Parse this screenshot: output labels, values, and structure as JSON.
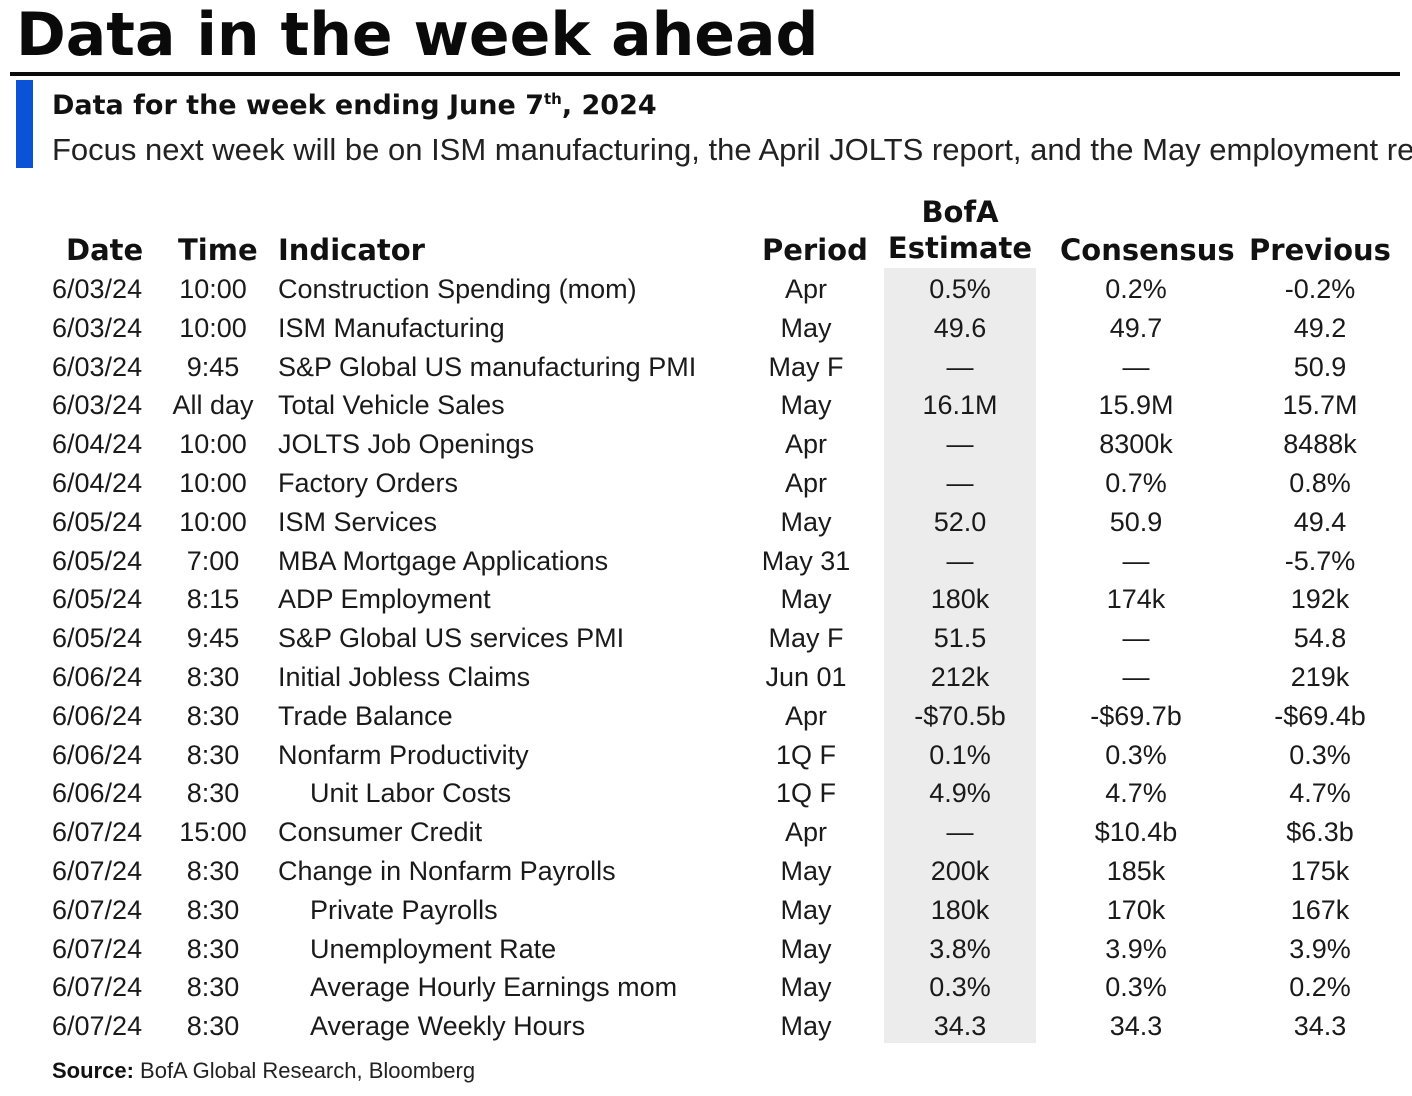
{
  "title": "Data in the week ahead",
  "subtitle": {
    "prefix": "Data for the week ending June 7",
    "superscript": "th",
    "suffix": ", 2024"
  },
  "focus": "Focus next week will be on ISM manufacturing, the April JOLTS report, and the May employment report",
  "colors": {
    "accent": "#0a53d6",
    "estimate_shade": "#ececec",
    "rule": "#0b0b0b"
  },
  "table": {
    "headers": {
      "date": "Date",
      "time": "Time",
      "indicator": "Indicator",
      "period": "Period",
      "bofa_line1": "BofA",
      "bofa_line2": "Estimate",
      "consensus": "Consensus",
      "previous": "Previous"
    },
    "rows": [
      {
        "date": "6/03/24",
        "time": "10:00",
        "indicator": "Construction Spending (mom)",
        "indent": false,
        "period": "Apr",
        "estimate": "0.5%",
        "consensus": "0.2%",
        "previous": "-0.2%"
      },
      {
        "date": "6/03/24",
        "time": "10:00",
        "indicator": "ISM Manufacturing",
        "indent": false,
        "period": "May",
        "estimate": "49.6",
        "consensus": "49.7",
        "previous": "49.2"
      },
      {
        "date": "6/03/24",
        "time": "9:45",
        "indicator": "S&P Global US manufacturing PMI",
        "indent": false,
        "period": "May F",
        "estimate": "—",
        "consensus": "—",
        "previous": "50.9"
      },
      {
        "date": "6/03/24",
        "time": "All day",
        "indicator": "Total Vehicle Sales",
        "indent": false,
        "period": "May",
        "estimate": "16.1M",
        "consensus": "15.9M",
        "previous": "15.7M"
      },
      {
        "date": "6/04/24",
        "time": "10:00",
        "indicator": "JOLTS Job Openings",
        "indent": false,
        "period": "Apr",
        "estimate": "—",
        "consensus": "8300k",
        "previous": "8488k"
      },
      {
        "date": "6/04/24",
        "time": "10:00",
        "indicator": "Factory Orders",
        "indent": false,
        "period": "Apr",
        "estimate": "—",
        "consensus": "0.7%",
        "previous": "0.8%"
      },
      {
        "date": "6/05/24",
        "time": "10:00",
        "indicator": "ISM Services",
        "indent": false,
        "period": "May",
        "estimate": "52.0",
        "consensus": "50.9",
        "previous": "49.4"
      },
      {
        "date": "6/05/24",
        "time": "7:00",
        "indicator": "MBA Mortgage Applications",
        "indent": false,
        "period": "May 31",
        "estimate": "—",
        "consensus": "—",
        "previous": "-5.7%"
      },
      {
        "date": "6/05/24",
        "time": "8:15",
        "indicator": "ADP Employment",
        "indent": false,
        "period": "May",
        "estimate": "180k",
        "consensus": "174k",
        "previous": "192k"
      },
      {
        "date": "6/05/24",
        "time": "9:45",
        "indicator": "S&P Global US services PMI",
        "indent": false,
        "period": "May F",
        "estimate": "51.5",
        "consensus": "—",
        "previous": "54.8"
      },
      {
        "date": "6/06/24",
        "time": "8:30",
        "indicator": "Initial Jobless Claims",
        "indent": false,
        "period": "Jun 01",
        "estimate": "212k",
        "consensus": "—",
        "previous": "219k"
      },
      {
        "date": "6/06/24",
        "time": "8:30",
        "indicator": "Trade Balance",
        "indent": false,
        "period": "Apr",
        "estimate": "-$70.5b",
        "consensus": "-$69.7b",
        "previous": "-$69.4b"
      },
      {
        "date": "6/06/24",
        "time": "8:30",
        "indicator": "Nonfarm Productivity",
        "indent": false,
        "period": "1Q F",
        "estimate": "0.1%",
        "consensus": "0.3%",
        "previous": "0.3%"
      },
      {
        "date": "6/06/24",
        "time": "8:30",
        "indicator": "Unit Labor Costs",
        "indent": true,
        "period": "1Q F",
        "estimate": "4.9%",
        "consensus": "4.7%",
        "previous": "4.7%"
      },
      {
        "date": "6/07/24",
        "time": "15:00",
        "indicator": "Consumer Credit",
        "indent": false,
        "period": "Apr",
        "estimate": "—",
        "consensus": "$10.4b",
        "previous": "$6.3b"
      },
      {
        "date": "6/07/24",
        "time": "8:30",
        "indicator": "Change in Nonfarm Payrolls",
        "indent": false,
        "period": "May",
        "estimate": "200k",
        "consensus": "185k",
        "previous": "175k"
      },
      {
        "date": "6/07/24",
        "time": "8:30",
        "indicator": "Private Payrolls",
        "indent": true,
        "period": "May",
        "estimate": "180k",
        "consensus": "170k",
        "previous": "167k"
      },
      {
        "date": "6/07/24",
        "time": "8:30",
        "indicator": "Unemployment Rate",
        "indent": true,
        "period": "May",
        "estimate": "3.8%",
        "consensus": "3.9%",
        "previous": "3.9%"
      },
      {
        "date": "6/07/24",
        "time": "8:30",
        "indicator": "Average Hourly Earnings mom",
        "indent": true,
        "period": "May",
        "estimate": "0.3%",
        "consensus": "0.3%",
        "previous": "0.2%"
      },
      {
        "date": "6/07/24",
        "time": "8:30",
        "indicator": "Average Weekly Hours",
        "indent": true,
        "period": "May",
        "estimate": "34.3",
        "consensus": "34.3",
        "previous": "34.3"
      }
    ]
  },
  "source": {
    "label": "Source:",
    "text": " BofA Global Research, Bloomberg"
  }
}
